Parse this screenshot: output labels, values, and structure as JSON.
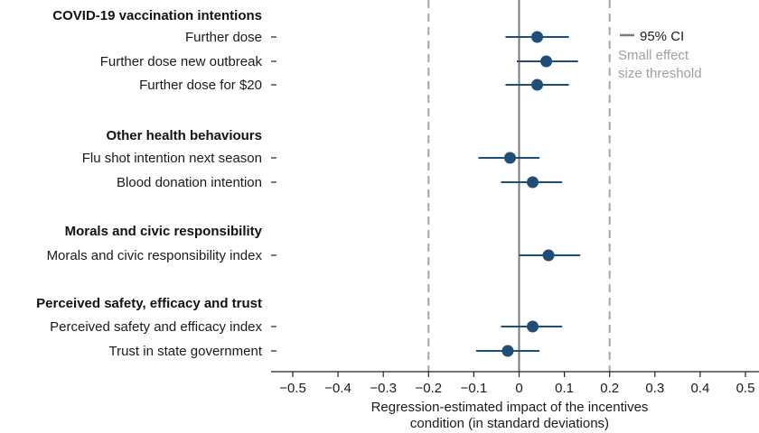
{
  "chart_data": {
    "type": "forest",
    "xlim": [
      -0.5,
      0.5
    ],
    "x_ticks": [
      -0.5,
      -0.4,
      -0.3,
      -0.2,
      -0.1,
      0,
      0.1,
      0.2,
      0.3,
      0.4,
      0.5
    ],
    "x_tick_labels": [
      "−0.5",
      "−0.4",
      "−0.3",
      "−0.2",
      "−0.1",
      "0",
      "0.1",
      "0.2",
      "0.3",
      "0.4",
      "0.5"
    ],
    "xlabel_line1": "Regression-estimated impact of the incentives",
    "xlabel_line2": "condition (in standard deviations)",
    "small_effect_threshold": [
      -0.2,
      0.2
    ],
    "legend": {
      "ci_label": "95% CI",
      "threshold_label_line1": "Small effect",
      "threshold_label_line2": "size threshold"
    },
    "groups": [
      {
        "title": "COVID-19 vaccination intentions",
        "rows": [
          {
            "label": "Further dose",
            "estimate": 0.04,
            "ci_low": -0.03,
            "ci_high": 0.11
          },
          {
            "label": "Further dose new outbreak",
            "estimate": 0.06,
            "ci_low": -0.005,
            "ci_high": 0.13
          },
          {
            "label": "Further dose for $20",
            "estimate": 0.04,
            "ci_low": -0.03,
            "ci_high": 0.11
          }
        ]
      },
      {
        "title": "Other health behaviours",
        "rows": [
          {
            "label": "Flu shot intention next season",
            "estimate": -0.02,
            "ci_low": -0.09,
            "ci_high": 0.045
          },
          {
            "label": "Blood donation intention",
            "estimate": 0.03,
            "ci_low": -0.04,
            "ci_high": 0.095
          }
        ]
      },
      {
        "title": "Morals and civic responsibility",
        "rows": [
          {
            "label": "Morals and civic responsibility index",
            "estimate": 0.065,
            "ci_low": 0.0,
            "ci_high": 0.135
          }
        ]
      },
      {
        "title": "Perceived safety, efficacy and trust",
        "rows": [
          {
            "label": "Perceived safety and efficacy index",
            "estimate": 0.03,
            "ci_low": -0.04,
            "ci_high": 0.095
          },
          {
            "label": "Trust in state government",
            "estimate": -0.025,
            "ci_low": -0.095,
            "ci_high": 0.045
          }
        ]
      }
    ]
  },
  "colors": {
    "point": "#1f4e79",
    "ci": "#1f4e79",
    "zero_line": "#7a7a7a",
    "threshold_line": "#a6a6a6",
    "axis": "#222222"
  }
}
